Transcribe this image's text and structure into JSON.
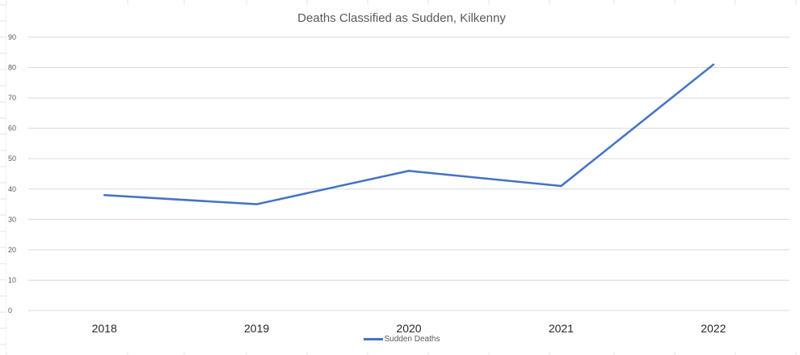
{
  "chart_data": {
    "type": "line",
    "title": "Deaths Classified as Sudden, Kilkenny",
    "xlabel": "",
    "ylabel": "",
    "categories": [
      "2018",
      "2019",
      "2020",
      "2021",
      "2022"
    ],
    "series": [
      {
        "name": "Sudden Deaths",
        "values": [
          38,
          35,
          46,
          41,
          81
        ],
        "color": "#4472c4"
      }
    ],
    "ylim": [
      0,
      90
    ],
    "yticks": [
      "0",
      "10",
      "20",
      "30",
      "40",
      "50",
      "60",
      "70",
      "80",
      "90"
    ],
    "grid": true,
    "legend_position": "bottom"
  }
}
